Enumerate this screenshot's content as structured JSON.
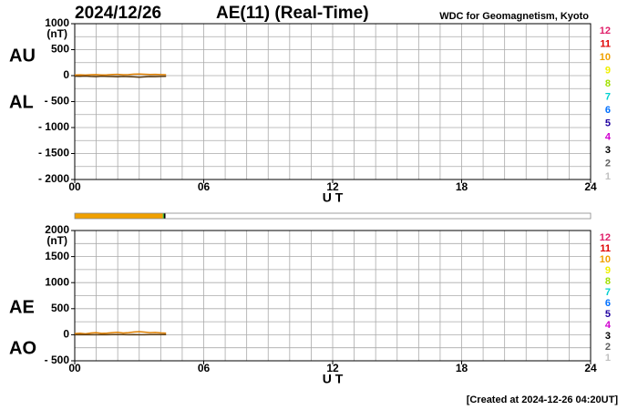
{
  "header": {
    "date": "2024/12/26",
    "title": "AE(11) (Real-Time)",
    "source": "WDC for Geomagnetism, Kyoto"
  },
  "footer": "[Created at 2024-12-26 04:20UT]",
  "chart_data": [
    {
      "type": "line",
      "unit": "(nT)",
      "xlabel": "U T",
      "x": [
        0,
        0.25,
        0.5,
        0.75,
        1,
        1.25,
        1.5,
        1.75,
        2,
        2.25,
        2.5,
        2.75,
        3,
        3.25,
        3.5,
        3.75,
        4,
        4.25
      ],
      "series": [
        {
          "name": "AU",
          "color": "#e08000",
          "values": [
            12,
            15,
            10,
            18,
            20,
            14,
            16,
            22,
            25,
            18,
            20,
            28,
            30,
            26,
            22,
            24,
            20,
            18
          ]
        },
        {
          "name": "AL",
          "color": "#5a3a10",
          "values": [
            -10,
            -14,
            -8,
            -16,
            -20,
            -12,
            -15,
            -18,
            -22,
            -15,
            -20,
            -25,
            -30,
            -24,
            -18,
            -20,
            -16,
            -14
          ]
        }
      ],
      "xlim": [
        0,
        24
      ],
      "xticks": [
        {
          "value": 0,
          "label": "00"
        },
        {
          "value": 6,
          "label": "06"
        },
        {
          "value": 12,
          "label": "12"
        },
        {
          "value": 18,
          "label": "18"
        },
        {
          "value": 24,
          "label": "24"
        }
      ],
      "xgrid": [
        1,
        2,
        3,
        4,
        5,
        6,
        7,
        8,
        9,
        10,
        11,
        12,
        13,
        14,
        15,
        16,
        17,
        18,
        19,
        20,
        21,
        22,
        23
      ],
      "ylim": [
        -2000,
        1000
      ],
      "yticks": [
        1000,
        500,
        0,
        {
          "value": -500,
          "label": "- 500"
        },
        {
          "value": -1000,
          "label": "- 1000"
        },
        {
          "value": -1500,
          "label": "- 1500"
        },
        {
          "value": -2000,
          "label": "- 2000"
        }
      ],
      "ygrid": [
        750,
        500,
        250,
        0,
        -250,
        -500,
        -750,
        -1000,
        -1250,
        -1500,
        -1750
      ],
      "grid": true,
      "station_counts": [
        12,
        11,
        10,
        9,
        8,
        7,
        6,
        5,
        4,
        3,
        2,
        1
      ],
      "station_colors": [
        "#e0206a",
        "#e00000",
        "#f0a000",
        "#f0f000",
        "#a0e000",
        "#00d0d0",
        "#0070ff",
        "#2000a0",
        "#d000d0",
        "#000000",
        "#606060",
        "#c0c0c0"
      ]
    },
    {
      "type": "line",
      "unit": "(nT)",
      "xlabel": "U T",
      "x": [
        0,
        0.25,
        0.5,
        0.75,
        1,
        1.25,
        1.5,
        1.75,
        2,
        2.25,
        2.5,
        2.75,
        3,
        3.25,
        3.5,
        3.75,
        4,
        4.25
      ],
      "series": [
        {
          "name": "AE",
          "color": "#e08000",
          "values": [
            22,
            29,
            18,
            34,
            40,
            26,
            31,
            40,
            47,
            33,
            40,
            53,
            60,
            50,
            40,
            44,
            36,
            32
          ]
        },
        {
          "name": "AO",
          "color": "#5a3a10",
          "values": [
            1,
            0.5,
            1,
            1,
            0,
            1,
            0.5,
            2,
            1.5,
            1.5,
            0,
            1.5,
            0,
            1,
            2,
            2,
            2,
            2
          ]
        }
      ],
      "xlim": [
        0,
        24
      ],
      "xticks": [
        {
          "value": 0,
          "label": "00"
        },
        {
          "value": 6,
          "label": "06"
        },
        {
          "value": 12,
          "label": "12"
        },
        {
          "value": 18,
          "label": "18"
        },
        {
          "value": 24,
          "label": "24"
        }
      ],
      "xgrid": [
        1,
        2,
        3,
        4,
        5,
        6,
        7,
        8,
        9,
        10,
        11,
        12,
        13,
        14,
        15,
        16,
        17,
        18,
        19,
        20,
        21,
        22,
        23
      ],
      "ylim": [
        -500,
        2000
      ],
      "yticks": [
        2000,
        1500,
        1000,
        500,
        0,
        {
          "value": -500,
          "label": "- 500"
        }
      ],
      "ygrid": [
        1750,
        1500,
        1250,
        1000,
        750,
        500,
        250,
        0,
        -250
      ],
      "grid": true,
      "station_counts": [
        12,
        11,
        10,
        9,
        8,
        7,
        6,
        5,
        4,
        3,
        2,
        1
      ],
      "station_colors": [
        "#e0206a",
        "#e00000",
        "#f0a000",
        "#f0f000",
        "#a0e000",
        "#00d0d0",
        "#0070ff",
        "#2000a0",
        "#d000d0",
        "#000000",
        "#606060",
        "#c0c0c0"
      ]
    }
  ],
  "coverage": [
    {
      "start": 0,
      "end": 4.1,
      "color": "#f0a000"
    },
    {
      "start": 4.1,
      "end": 4.15,
      "color": "#20c020"
    },
    {
      "start": 4.15,
      "end": 4.22,
      "color": "#000000"
    }
  ]
}
